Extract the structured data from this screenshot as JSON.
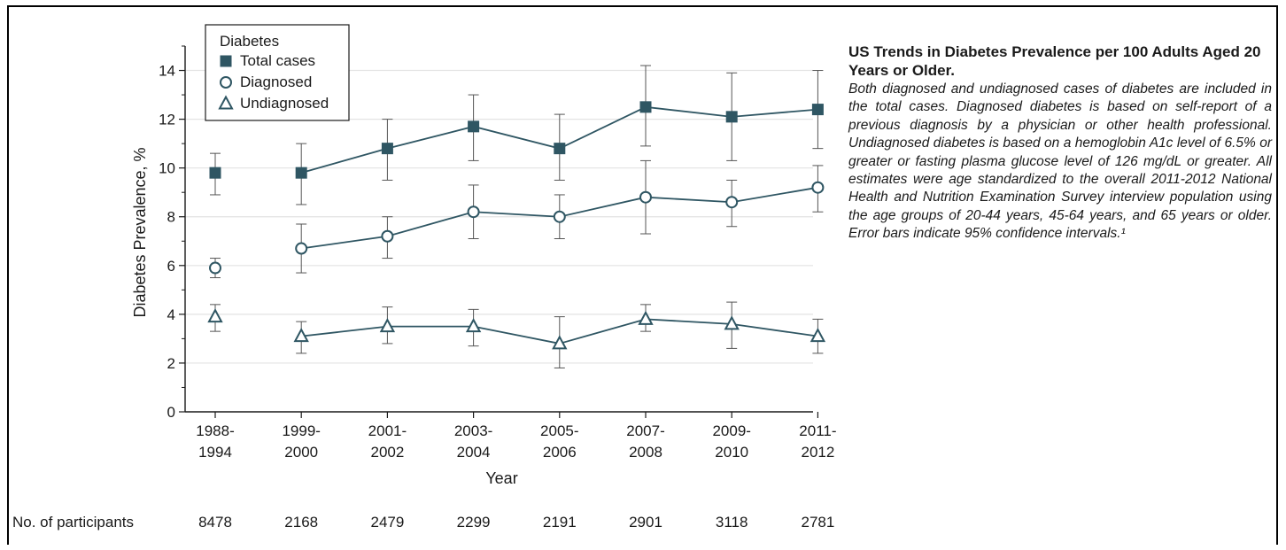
{
  "caption": {
    "title": "US Trends in Diabetes Prevalence per 100 Adults Aged 20 Years or Older.",
    "body": "Both diagnosed and undiagnosed cases of diabetes are included in the total cases. Diagnosed diabetes is based on self-report of a previous diagnosis by a physician or other health professional. Undiagnosed diabetes is based on a hemoglobin A1c level of 6.5% or greater or fasting plasma glucose level of 126 mg/dL or greater. All estimates were age standardized to the overall 2011-2012 National Health and Nutrition Examination Survey interview population using the age groups of 20-44 years, 45-64 years, and 65 years or older. Error bars indicate 95% confidence intervals.¹"
  },
  "colors": {
    "series": "#2f5663",
    "axis": "#1a1a1a",
    "grid": "#e3e3e3"
  },
  "chart_data": {
    "type": "line",
    "xlabel": "Year",
    "ylabel": "Diabetes Prevalence, %",
    "ylim": [
      0,
      15
    ],
    "yticks": [
      0,
      2,
      4,
      6,
      8,
      10,
      12,
      14
    ],
    "grid": true,
    "legend": {
      "title": "Diabetes",
      "placement": "top-left"
    },
    "categories": [
      [
        "1988-",
        "1994"
      ],
      [
        "1999-",
        "2000"
      ],
      [
        "2001-",
        "2002"
      ],
      [
        "2003-",
        "2004"
      ],
      [
        "2005-",
        "2006"
      ],
      [
        "2007-",
        "2008"
      ],
      [
        "2009-",
        "2010"
      ],
      [
        "2011-",
        "2012"
      ]
    ],
    "series": [
      {
        "name": "Total cases",
        "marker": "square-filled",
        "values": [
          9.8,
          9.8,
          10.8,
          11.7,
          10.8,
          12.5,
          12.1,
          12.4
        ],
        "lower": [
          8.9,
          8.5,
          9.5,
          10.3,
          9.5,
          10.9,
          10.3,
          10.8
        ],
        "upper": [
          10.6,
          11.0,
          12.0,
          13.0,
          12.2,
          14.2,
          13.9,
          14.0
        ],
        "connect_from_index": 1
      },
      {
        "name": "Diagnosed",
        "marker": "circle-open",
        "values": [
          5.9,
          6.7,
          7.2,
          8.2,
          8.0,
          8.8,
          8.6,
          9.2
        ],
        "lower": [
          5.5,
          5.7,
          6.3,
          7.1,
          7.1,
          7.3,
          7.6,
          8.2
        ],
        "upper": [
          6.3,
          7.7,
          8.0,
          9.3,
          8.9,
          10.3,
          9.5,
          10.1
        ],
        "connect_from_index": 1
      },
      {
        "name": "Undiagnosed",
        "marker": "triangle-open",
        "values": [
          3.9,
          3.1,
          3.5,
          3.5,
          2.8,
          3.8,
          3.6,
          3.1
        ],
        "lower": [
          3.3,
          2.4,
          2.8,
          2.7,
          1.8,
          3.3,
          2.6,
          2.4
        ],
        "upper": [
          4.4,
          3.7,
          4.3,
          4.2,
          3.9,
          4.4,
          4.5,
          3.8
        ],
        "connect_from_index": 1
      }
    ],
    "participants": {
      "label": "No. of participants",
      "values": [
        "8478",
        "2168",
        "2479",
        "2299",
        "2191",
        "2901",
        "3118",
        "2781"
      ]
    }
  }
}
